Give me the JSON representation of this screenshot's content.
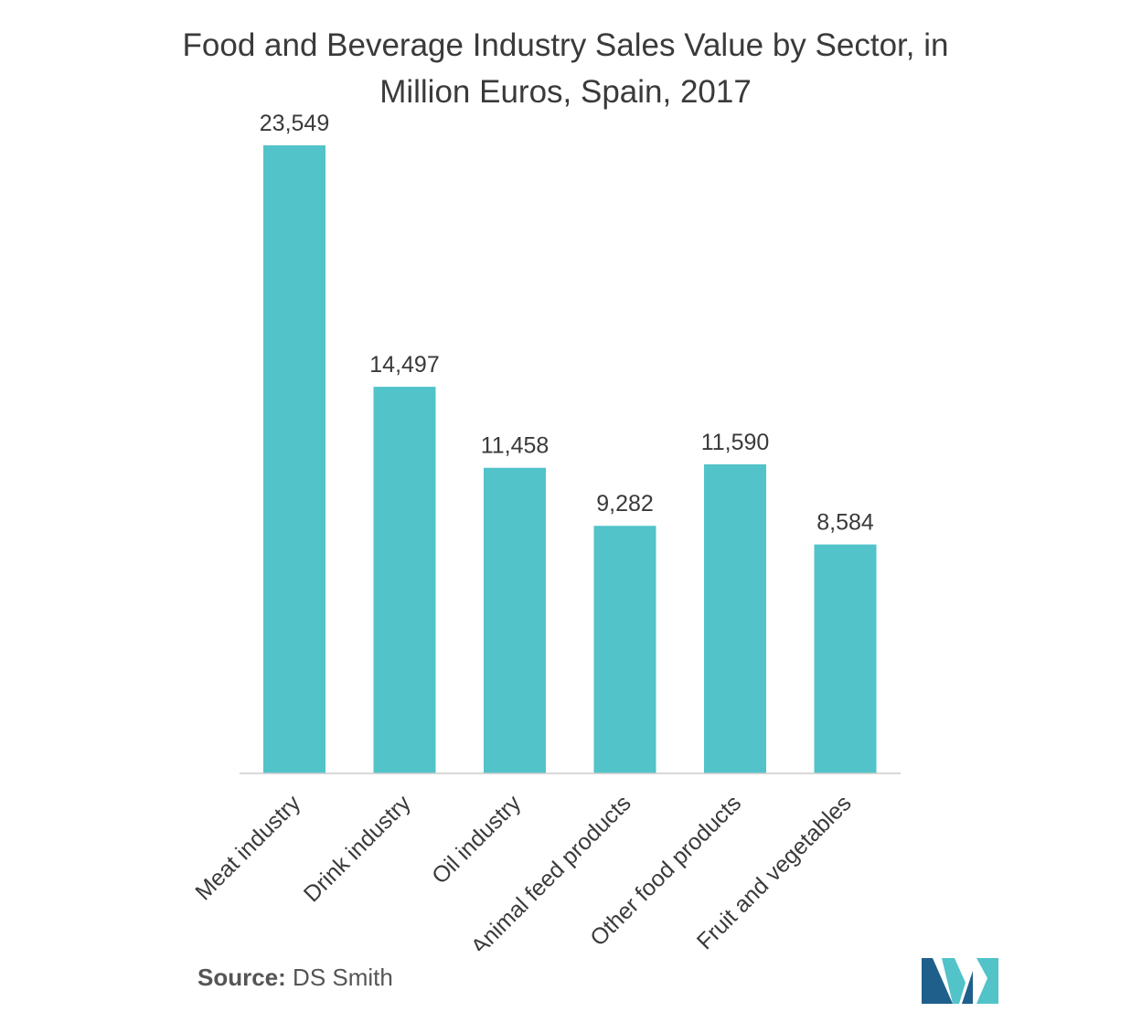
{
  "chart_data": {
    "type": "bar",
    "title": "Food and Beverage Industry Sales Value by Sector, in Million Euros, Spain, 2017",
    "title_lines": [
      "Food and Beverage Industry Sales Value by Sector, in",
      "Million Euros, Spain, 2017"
    ],
    "categories": [
      "Meat industry",
      "Drink industry",
      "Oil industry",
      "Animal feed products",
      "Other food products",
      "Fruit and vegetables"
    ],
    "values": [
      23549,
      14497,
      11458,
      9282,
      11590,
      8584
    ],
    "value_labels": [
      "23,549",
      "14,497",
      "11,458",
      "9,282",
      "11,590",
      "8,584"
    ],
    "xlabel": "",
    "ylabel": "",
    "ylim": [
      0,
      23549
    ],
    "grid": false,
    "legend": "none",
    "bar_color": "#51c3c9",
    "axis_color": "#cccccc"
  },
  "source": {
    "label": "Source:",
    "value": "DS Smith"
  },
  "logo": {
    "name": "mordor-intelligence-logo",
    "colors": [
      "#1f5f8b",
      "#51c3c9"
    ]
  }
}
